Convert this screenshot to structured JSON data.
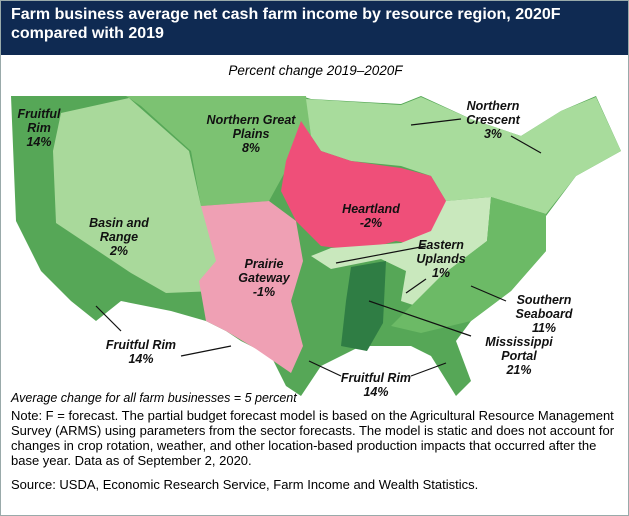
{
  "header": {
    "title": "Farm business average net cash farm income by resource region, 2020F compared with 2019"
  },
  "subtitle": "Percent change 2019–2020F",
  "regions": [
    {
      "name": "Fruitful Rim",
      "change": "14%"
    },
    {
      "name": "Northern Great Plains",
      "change": "8%"
    },
    {
      "name": "Northern Crescent",
      "change": "3%"
    },
    {
      "name": "Basin and Range",
      "change": "2%"
    },
    {
      "name": "Heartland",
      "change": "-2%"
    },
    {
      "name": "Prairie Gateway",
      "change": "-1%"
    },
    {
      "name": "Eastern Uplands",
      "change": "1%"
    },
    {
      "name": "Southern Seaboard",
      "change": "11%"
    },
    {
      "name": "Mississippi Portal",
      "change": "21%"
    }
  ],
  "average_note": "Average change for all farm businesses = 5 percent",
  "note": "Note: F = forecast. The partial budget forecast model is based on the Agricultural Resource Management Survey (ARMS) using parameters from the sector forecasts. The model is static and does not account for changes in crop rotation, weather, and other location-based production impacts that occurred after the base year. Data as of September 2, 2020.",
  "source": "Source: USDA, Economic Research Service, Farm Income and Wealth Statistics."
}
